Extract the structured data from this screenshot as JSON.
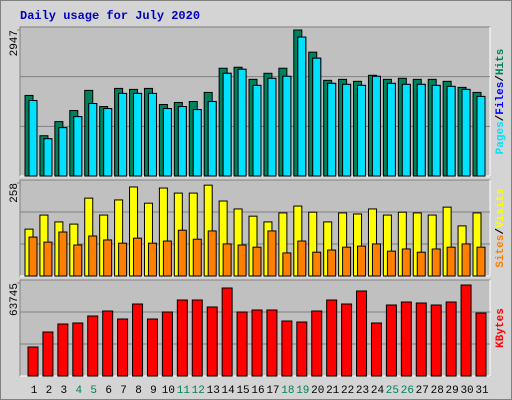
{
  "legend_separator": "/",
  "chart_data": [
    {
      "type": "bar",
      "title": "Daily usage for July 2020",
      "categories": [
        1,
        2,
        3,
        4,
        5,
        6,
        7,
        8,
        9,
        10,
        11,
        12,
        13,
        14,
        15,
        16,
        17,
        18,
        19,
        20,
        21,
        22,
        23,
        24,
        25,
        26,
        27,
        28,
        29,
        30,
        31
      ],
      "category_colors": [
        "#000000",
        "#000000",
        "#000000",
        "#00805c",
        "#00805c",
        "#000000",
        "#000000",
        "#000000",
        "#000000",
        "#000000",
        "#00805c",
        "#00805c",
        "#000000",
        "#000000",
        "#000000",
        "#000000",
        "#000000",
        "#00805c",
        "#00805c",
        "#000000",
        "#000000",
        "#000000",
        "#000000",
        "#000000",
        "#00805c",
        "#00805c",
        "#000000",
        "#000000",
        "#000000",
        "#000000",
        "#000000"
      ],
      "ylim": [
        0,
        2947
      ],
      "yticks": [
        2947
      ],
      "series": [
        {
          "name": "Hits",
          "color": "#00805c",
          "values": [
            1626,
            813,
            1098,
            1321,
            1728,
            1402,
            1768,
            1748,
            1768,
            1443,
            1484,
            1504,
            1687,
            2175,
            2195,
            1951,
            2073,
            2175,
            2947,
            2500,
            1931,
            1951,
            1911,
            2033,
            1951,
            1972,
            1951,
            1951,
            1911,
            1789,
            1687
          ]
        },
        {
          "name": "Files",
          "color": "#0000ff",
          "values": [
            1524,
            752,
            976,
            1199,
            1463,
            1362,
            1667,
            1667,
            1667,
            1362,
            1402,
            1341,
            1504,
            2073,
            2154,
            1829,
            1971,
            2012,
            2805,
            2378,
            1870,
            1850,
            1829,
            2012,
            1870,
            1850,
            1850,
            1829,
            1809,
            1748,
            1606
          ]
        },
        {
          "name": "Pages",
          "color": "#00e0ff",
          "values": [
            1524,
            752,
            976,
            1199,
            1463,
            1362,
            1667,
            1667,
            1667,
            1362,
            1402,
            1341,
            1504,
            2073,
            2154,
            1829,
            1971,
            2012,
            2805,
            2378,
            1870,
            1850,
            1829,
            2012,
            1870,
            1850,
            1850,
            1829,
            1809,
            1748,
            1606
          ]
        }
      ]
    },
    {
      "type": "bar",
      "ylim": [
        0,
        258
      ],
      "yticks": [
        258
      ],
      "series": [
        {
          "name": "Visits",
          "color": "#ffff00",
          "values": [
            130,
            169,
            150,
            144,
            216,
            169,
            211,
            247,
            202,
            244,
            230,
            230,
            252,
            208,
            186,
            166,
            150,
            175,
            194,
            177,
            150,
            175,
            172,
            186,
            169,
            177,
            175,
            169,
            191,
            139,
            175
          ]
        },
        {
          "name": "Sites",
          "color": "#ff8000",
          "values": [
            108,
            94,
            122,
            86,
            111,
            100,
            91,
            105,
            91,
            97,
            127,
            102,
            125,
            89,
            86,
            80,
            125,
            64,
            97,
            66,
            72,
            80,
            83,
            89,
            69,
            75,
            66,
            75,
            80,
            89,
            80
          ]
        }
      ]
    },
    {
      "type": "bar",
      "ylim": [
        0,
        63745
      ],
      "yticks": [
        63745
      ],
      "series": [
        {
          "name": "KBytes",
          "color": "#ff0000",
          "values": [
            19878,
            30159,
            35644,
            36330,
            41125,
            44552,
            39068,
            49350,
            39068,
            43867,
            52092,
            52092,
            47294,
            60318,
            43867,
            45238,
            45238,
            37697,
            37012,
            44552,
            52092,
            49350,
            58262,
            36330,
            48666,
            50722,
            50037,
            48666,
            50722,
            62374,
            43181
          ]
        }
      ]
    }
  ]
}
